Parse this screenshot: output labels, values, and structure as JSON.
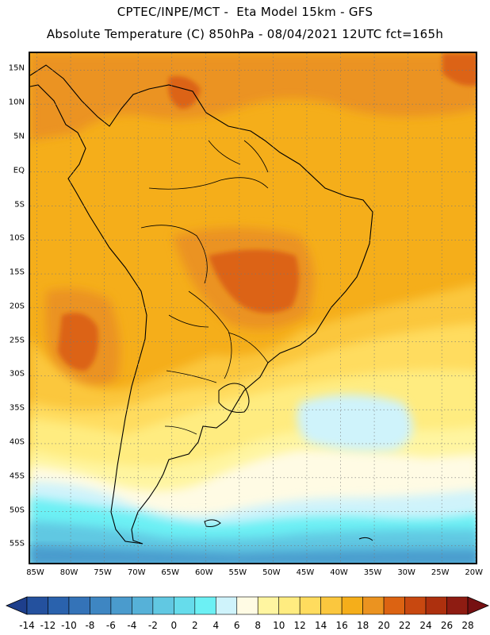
{
  "header": {
    "line1": "CPTEC/INPE/MCT -  Eta Model 15km - GFS",
    "line2": "Absolute Temperature (C) 850hPa - 08/04/2021 12UTC fct=165h"
  },
  "map": {
    "lat_labels": [
      "15N",
      "10N",
      "5N",
      "EQ",
      "5S",
      "10S",
      "15S",
      "20S",
      "25S",
      "30S",
      "35S",
      "40S",
      "45S",
      "50S",
      "55S"
    ],
    "lat_values": [
      15,
      10,
      5,
      0,
      -5,
      -10,
      -15,
      -20,
      -25,
      -30,
      -35,
      -40,
      -45,
      -50,
      -55
    ],
    "lon_labels": [
      "85W",
      "80W",
      "75W",
      "70W",
      "65W",
      "60W",
      "55W",
      "50W",
      "45W",
      "40W",
      "35W",
      "30W",
      "25W",
      "20W"
    ],
    "lon_values": [
      -85,
      -80,
      -75,
      -70,
      -65,
      -60,
      -55,
      -50,
      -45,
      -40,
      -35,
      -30,
      -25,
      -20
    ],
    "lat_range": [
      -58,
      17.5
    ],
    "lon_range": [
      -86,
      -19.5
    ],
    "grid": "dotted"
  },
  "colorbar": {
    "labels": [
      "-14",
      "-12",
      "-10",
      "-8",
      "-6",
      "-4",
      "-2",
      "0",
      "2",
      "4",
      "6",
      "8",
      "10",
      "12",
      "14",
      "16",
      "18",
      "20",
      "22",
      "24",
      "26",
      "28"
    ],
    "colors": [
      "#1e3f8c",
      "#24519e",
      "#2a62ad",
      "#3473b8",
      "#3e86c2",
      "#4a9bcd",
      "#56b1d8",
      "#61c8e2",
      "#66dceb",
      "#6cf0f4",
      "#cff3fb",
      "#fffbe4",
      "#fff5a0",
      "#ffec80",
      "#ffdc5e",
      "#fbc73e",
      "#f5ae1a",
      "#eb9320",
      "#dc6312",
      "#c84810",
      "#ad300e",
      "#8e1c12",
      "#761012"
    ]
  }
}
